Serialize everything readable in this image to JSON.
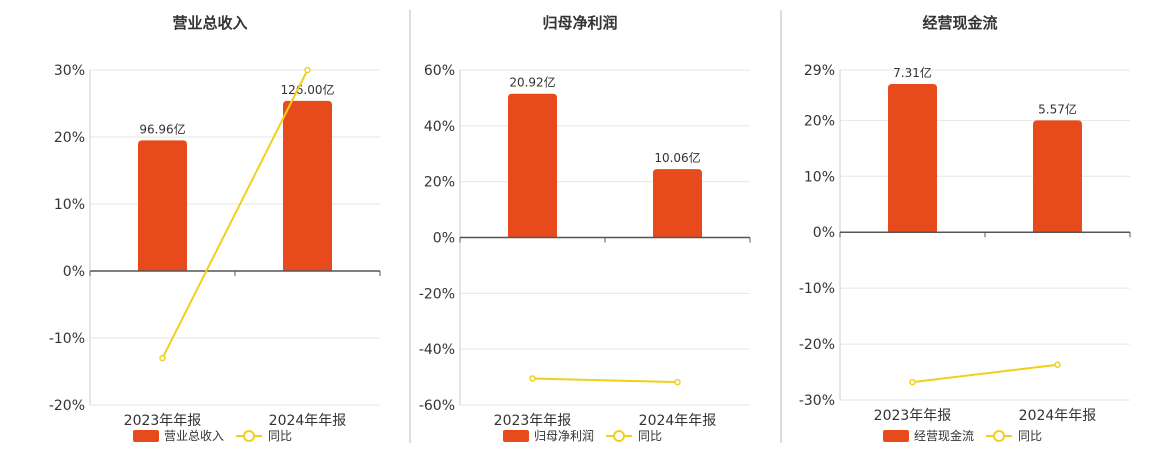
{
  "colors": {
    "bar": "#e84b1b",
    "line": "#f2cf1a",
    "grid": "#e6e6e6",
    "axis": "#555555",
    "divider": "#bbbbbb"
  },
  "chart_data": [
    {
      "type": "bar",
      "title": "营业总收入",
      "categories": [
        "2023年年报",
        "2024年年报"
      ],
      "ylim": [
        -20,
        30
      ],
      "yticks": [
        30,
        20,
        10,
        0,
        -10,
        -20
      ],
      "ytick_labels": [
        "30%",
        "20%",
        "10%",
        "0%",
        "-10%",
        "-20%"
      ],
      "series": [
        {
          "name": "营业总收入",
          "type": "bar",
          "values": [
            19.5,
            25.4
          ],
          "data_labels": [
            "96.96亿",
            "126.00亿"
          ]
        },
        {
          "name": "同比",
          "type": "line",
          "values": [
            -13.0,
            30.0
          ]
        }
      ],
      "legend": "bottom",
      "grid": true
    },
    {
      "type": "bar",
      "title": "归母净利润",
      "categories": [
        "2023年年报",
        "2024年年报"
      ],
      "ylim": [
        -60,
        60
      ],
      "yticks": [
        60,
        40,
        20,
        0,
        -20,
        -40,
        -60
      ],
      "ytick_labels": [
        "60%",
        "40%",
        "20%",
        "0%",
        "-20%",
        "-40%",
        "-60%"
      ],
      "series": [
        {
          "name": "归母净利润",
          "type": "bar",
          "values": [
            51.5,
            24.5
          ],
          "data_labels": [
            "20.92亿",
            "10.06亿"
          ]
        },
        {
          "name": "同比",
          "type": "line",
          "values": [
            -50.5,
            -51.8
          ]
        }
      ],
      "legend": "bottom",
      "grid": true
    },
    {
      "type": "bar",
      "title": "经营现金流",
      "categories": [
        "2023年年报",
        "2024年年报"
      ],
      "ylim": [
        -30,
        29
      ],
      "yticks": [
        29,
        20,
        10,
        0,
        -10,
        -20,
        -30
      ],
      "ytick_labels": [
        "29%",
        "20%",
        "10%",
        "0%",
        "-10%",
        "-20%",
        "-30%"
      ],
      "series": [
        {
          "name": "经营现金流",
          "type": "bar",
          "values": [
            26.5,
            20.0
          ],
          "data_labels": [
            "7.31亿",
            "5.57亿"
          ]
        },
        {
          "name": "同比",
          "type": "line",
          "values": [
            -26.8,
            -23.7
          ]
        }
      ],
      "legend": "bottom",
      "grid": true
    }
  ]
}
